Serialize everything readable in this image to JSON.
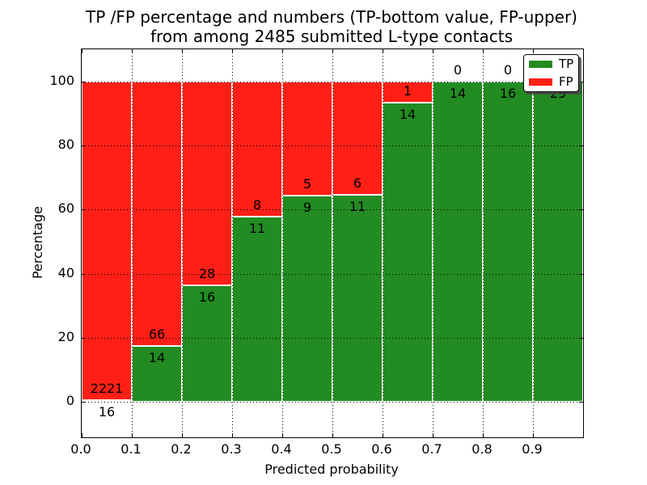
{
  "figure": {
    "title_line1": "TP /FP percentage and numbers (TP-bottom value, FP-upper)",
    "title_line2": "from among 2485 submitted L-type contacts"
  },
  "chart_data": {
    "type": "bar",
    "stacked": true,
    "orientation": "vertical",
    "title": "TP /FP percentage and numbers (TP-bottom value, FP-upper) from among 2485 submitted L-type contacts",
    "xlabel": "Predicted probability",
    "ylabel": "Percentage",
    "xlim": [
      0.0,
      1.0
    ],
    "ylim": [
      -11,
      110
    ],
    "grid": "dotted",
    "submitted_total": 2485,
    "x_tick_labels": [
      "0.0",
      "0.1",
      "0.2",
      "0.3",
      "0.4",
      "0.5",
      "0.6",
      "0.7",
      "0.8",
      "0.9"
    ],
    "x_tick_values": [
      0.0,
      0.1,
      0.2,
      0.3,
      0.4,
      0.5,
      0.6,
      0.7,
      0.8,
      0.9
    ],
    "y_tick_labels": [
      "0",
      "20",
      "40",
      "60",
      "80",
      "100"
    ],
    "y_tick_values": [
      0,
      20,
      40,
      60,
      80,
      100
    ],
    "colors": {
      "tp": "#228b22",
      "fp": "#ff1f16",
      "grid": "#000000",
      "bar_edge": "#ffffff"
    },
    "legend": {
      "position": "upper right",
      "entries": [
        {
          "label": "TP",
          "color": "#228b22"
        },
        {
          "label": "FP",
          "color": "#ff1f16"
        }
      ]
    },
    "categories": [
      "0.0-0.1",
      "0.1-0.2",
      "0.2-0.3",
      "0.3-0.4",
      "0.4-0.5",
      "0.5-0.6",
      "0.6-0.7",
      "0.7-0.8",
      "0.8-0.9",
      "0.9-1.0"
    ],
    "bins": [
      {
        "range": [
          0.0,
          0.1
        ],
        "tp": 16,
        "fp": 2221
      },
      {
        "range": [
          0.1,
          0.2
        ],
        "tp": 14,
        "fp": 66
      },
      {
        "range": [
          0.2,
          0.3
        ],
        "tp": 16,
        "fp": 28
      },
      {
        "range": [
          0.3,
          0.4
        ],
        "tp": 11,
        "fp": 8
      },
      {
        "range": [
          0.4,
          0.5
        ],
        "tp": 9,
        "fp": 5
      },
      {
        "range": [
          0.5,
          0.6
        ],
        "tp": 11,
        "fp": 6
      },
      {
        "range": [
          0.6,
          0.7
        ],
        "tp": 14,
        "fp": 1
      },
      {
        "range": [
          0.7,
          0.8
        ],
        "tp": 14,
        "fp": 0
      },
      {
        "range": [
          0.8,
          0.9
        ],
        "tp": 16,
        "fp": 0
      },
      {
        "range": [
          0.9,
          1.0
        ],
        "tp": 29,
        "fp": 0
      }
    ],
    "series": [
      {
        "name": "TP",
        "unit": "percent",
        "values": [
          0.7,
          17.5,
          36.4,
          57.9,
          64.3,
          64.7,
          93.3,
          100,
          100,
          100
        ]
      },
      {
        "name": "FP",
        "unit": "percent",
        "values": [
          99.3,
          82.5,
          63.6,
          42.1,
          35.7,
          35.3,
          6.7,
          0,
          0,
          0
        ]
      }
    ]
  }
}
